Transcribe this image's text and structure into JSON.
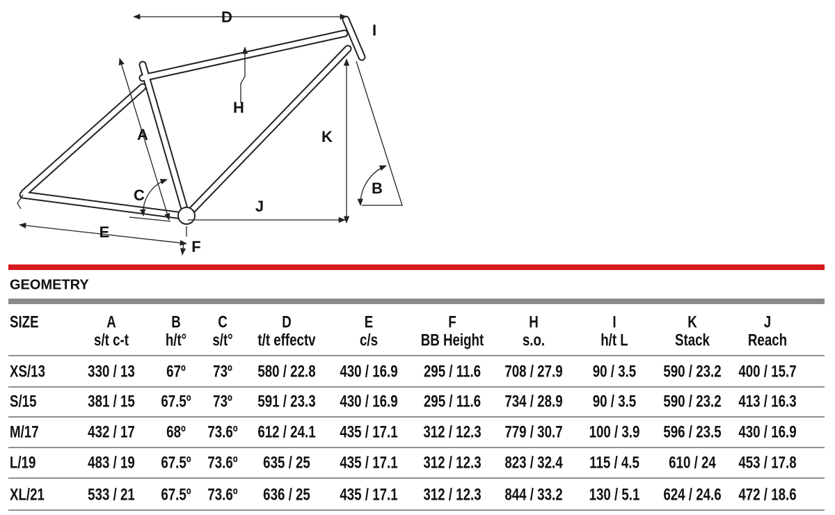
{
  "diagram": {
    "labels": {
      "D": "D",
      "I": "I",
      "H": "H",
      "A": "A",
      "K": "K",
      "C": "C",
      "B": "B",
      "J": "J",
      "E": "E",
      "F": "F"
    }
  },
  "section_title": "GEOMETRY",
  "table": {
    "header": [
      {
        "letter": "SIZE",
        "label": null
      },
      {
        "letter": "A",
        "label": "s/t c-t"
      },
      {
        "letter": "B",
        "label": "h/t°"
      },
      {
        "letter": "C",
        "label": "s/t°"
      },
      {
        "letter": "D",
        "label": "t/t effectv"
      },
      {
        "letter": "E",
        "label": "c/s"
      },
      {
        "letter": "F",
        "label": "BB Height"
      },
      {
        "letter": "H",
        "label": "s.o."
      },
      {
        "letter": "I",
        "label": "h/t L"
      },
      {
        "letter": "K",
        "label": "Stack"
      },
      {
        "letter": "J",
        "label": "Reach"
      }
    ],
    "rows": [
      [
        "XS/13",
        "330 / 13",
        "67º",
        "73º",
        "580 / 22.8",
        "430 / 16.9",
        "295 / 11.6",
        "708 / 27.9",
        "90 / 3.5",
        "590 / 23.2",
        "400 / 15.7"
      ],
      [
        "S/15",
        "381 / 15",
        "67.5º",
        "73º",
        "591 / 23.3",
        "430 / 16.9",
        "295 / 11.6",
        "734 / 28.9",
        "90 / 3.5",
        "590 / 23.2",
        "413 / 16.3"
      ],
      [
        "M/17",
        "432 / 17",
        "68º",
        "73.6º",
        "612 / 24.1",
        "435 / 17.1",
        "312 / 12.3",
        "779 / 30.7",
        "100 / 3.9",
        "596 / 23.5",
        "430 / 16.9"
      ],
      [
        "L/19",
        "483 / 19",
        "67.5º",
        "73.6º",
        "635 / 25",
        "435 / 17.1",
        "312 / 12.3",
        "823 / 32.4",
        "115 / 4.5",
        "610 / 24",
        "453 / 17.8"
      ],
      [
        "XL/21",
        "533 / 21",
        "67.5º",
        "73.6º",
        "636 / 25",
        "435 / 17.1",
        "312 / 12.3",
        "844 / 33.2",
        "130 / 5.1",
        "624 / 24.6",
        "472 / 18.6"
      ]
    ]
  }
}
